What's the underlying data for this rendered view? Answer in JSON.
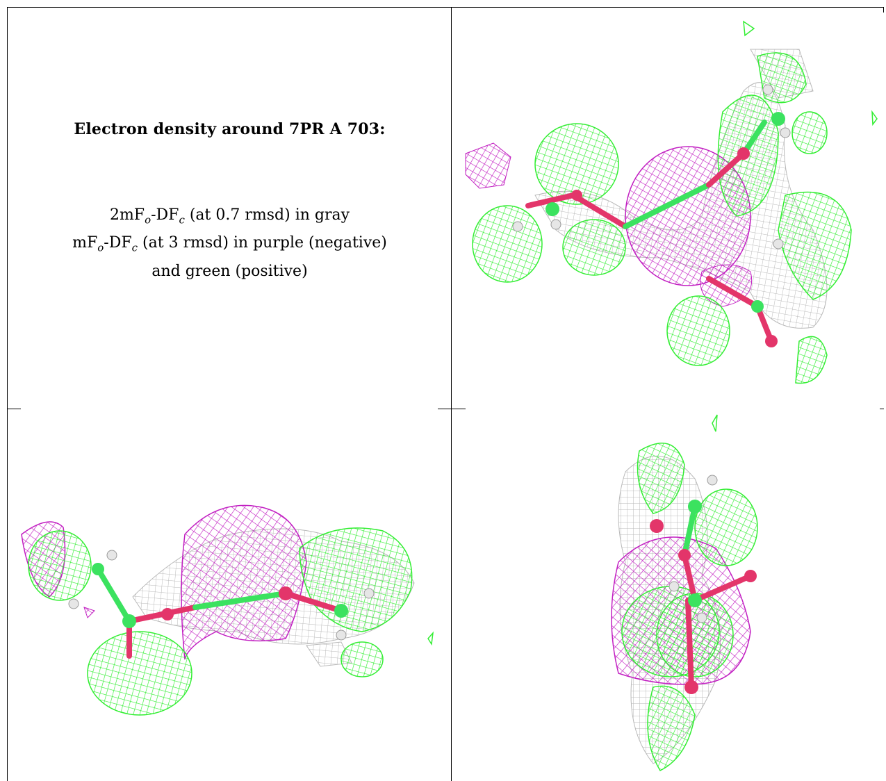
{
  "caption": {
    "title": "Electron density around 7PR A 703:",
    "line1_prefix": "2mF",
    "line1_sub1": "o",
    "line1_mid": "-DF",
    "line1_sub2": "c",
    "line1_suffix": " (at 0.7 rmsd) in gray",
    "line2_prefix": "mF",
    "line2_sub1": "o",
    "line2_mid": "-DF",
    "line2_sub2": "c",
    "line2_suffix": " (at 3 rmsd) in purple (negative)",
    "line3": "and green (positive)"
  },
  "colors": {
    "gray_mesh": "#b9b9b9",
    "purple_mesh": "#c21fc2",
    "green_mesh": "#33ee33",
    "oxygen": "#e3356a",
    "carbon": "#3be25f",
    "hydrogen": "#e6e6e6",
    "grid_lines": "#000000"
  },
  "panels": [
    {
      "name": "top-left",
      "content": "caption"
    },
    {
      "name": "top-right",
      "content": "density-view-1"
    },
    {
      "name": "bottom-left",
      "content": "density-view-2"
    },
    {
      "name": "bottom-right",
      "content": "density-view-3"
    }
  ]
}
